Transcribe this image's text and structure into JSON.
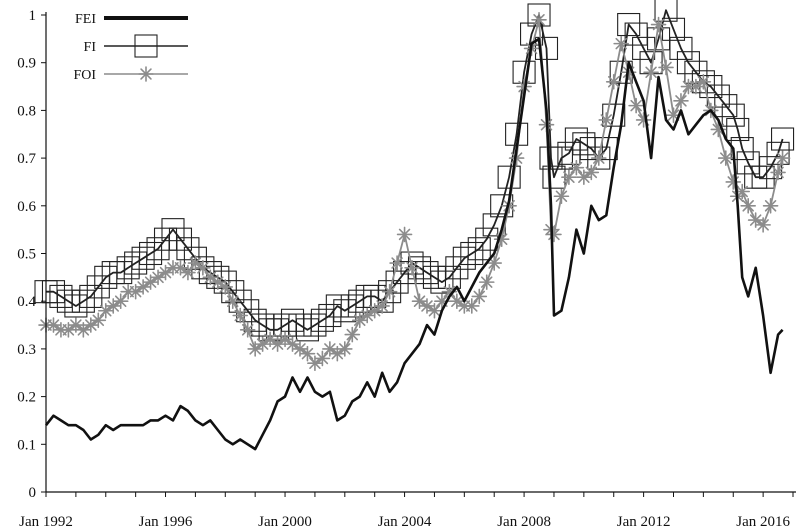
{
  "chart_data": {
    "type": "line",
    "title": "",
    "xlabel": "",
    "ylabel": "",
    "xlim": [
      1992.0,
      2017.1
    ],
    "ylim": [
      0,
      1.0
    ],
    "x_tick_labels": [
      {
        "label": "Jan 1992",
        "x": 1992
      },
      {
        "label": "Jan 1996",
        "x": 1996
      },
      {
        "label": "Jan 2000",
        "x": 2000
      },
      {
        "label": "Jan 2004",
        "x": 2004
      },
      {
        "label": "Jan 2008",
        "x": 2008
      },
      {
        "label": "Jan 2012",
        "x": 2012
      },
      {
        "label": "Jan 2016",
        "x": 2016
      }
    ],
    "y_ticks": [
      0,
      0.1,
      0.2,
      0.3,
      0.4,
      0.5,
      0.6,
      0.7,
      0.8,
      0.9,
      1
    ],
    "y_tick_labels": [
      "0",
      "0.1",
      "0.2",
      "0.3",
      "0.4",
      "0.5",
      "0.6",
      "0.7",
      "0.8",
      "0.9",
      "1"
    ],
    "grid": false,
    "legend": {
      "position": "top-left"
    },
    "series": [
      {
        "name": "FEI",
        "color": "#111111",
        "marker": "none",
        "x": [
          1992.0,
          1992.25,
          1992.5,
          1992.75,
          1993.0,
          1993.25,
          1993.5,
          1993.75,
          1994.0,
          1994.25,
          1994.5,
          1994.75,
          1995.0,
          1995.25,
          1995.5,
          1995.75,
          1996.0,
          1996.25,
          1996.5,
          1996.75,
          1997.0,
          1997.25,
          1997.5,
          1997.75,
          1998.0,
          1998.25,
          1998.5,
          1998.75,
          1999.0,
          1999.25,
          1999.5,
          1999.75,
          2000.0,
          2000.25,
          2000.5,
          2000.75,
          2001.0,
          2001.25,
          2001.5,
          2001.75,
          2002.0,
          2002.25,
          2002.5,
          2002.75,
          2003.0,
          2003.25,
          2003.5,
          2003.75,
          2004.0,
          2004.25,
          2004.5,
          2004.75,
          2005.0,
          2005.25,
          2005.5,
          2005.75,
          2006.0,
          2006.25,
          2006.5,
          2006.75,
          2007.0,
          2007.25,
          2007.5,
          2007.75,
          2008.0,
          2008.25,
          2008.5,
          2008.75,
          2008.9,
          2009.0,
          2009.25,
          2009.5,
          2009.75,
          2010.0,
          2010.25,
          2010.5,
          2010.75,
          2011.0,
          2011.25,
          2011.5,
          2011.75,
          2012.0,
          2012.25,
          2012.5,
          2012.75,
          2013.0,
          2013.25,
          2013.5,
          2013.75,
          2014.0,
          2014.25,
          2014.5,
          2014.75,
          2015.0,
          2015.15,
          2015.3,
          2015.5,
          2015.75,
          2016.0,
          2016.25,
          2016.5,
          2016.65
        ],
        "values": [
          0.14,
          0.16,
          0.15,
          0.14,
          0.14,
          0.13,
          0.11,
          0.12,
          0.14,
          0.13,
          0.14,
          0.14,
          0.14,
          0.14,
          0.15,
          0.15,
          0.16,
          0.15,
          0.18,
          0.17,
          0.15,
          0.14,
          0.15,
          0.13,
          0.11,
          0.1,
          0.11,
          0.1,
          0.09,
          0.12,
          0.15,
          0.19,
          0.2,
          0.24,
          0.21,
          0.24,
          0.21,
          0.2,
          0.21,
          0.15,
          0.16,
          0.19,
          0.2,
          0.23,
          0.2,
          0.25,
          0.21,
          0.23,
          0.27,
          0.29,
          0.31,
          0.35,
          0.33,
          0.38,
          0.41,
          0.43,
          0.4,
          0.43,
          0.46,
          0.48,
          0.5,
          0.55,
          0.61,
          0.72,
          0.83,
          0.94,
          0.95,
          0.8,
          0.6,
          0.37,
          0.38,
          0.45,
          0.55,
          0.5,
          0.6,
          0.57,
          0.58,
          0.68,
          0.77,
          0.9,
          0.86,
          0.82,
          0.7,
          0.87,
          0.78,
          0.76,
          0.8,
          0.75,
          0.77,
          0.79,
          0.8,
          0.78,
          0.74,
          0.72,
          0.6,
          0.45,
          0.41,
          0.47,
          0.37,
          0.25,
          0.33,
          0.34
        ]
      },
      {
        "name": "FI",
        "color": "#222222",
        "marker": "square",
        "x": [
          1992.0,
          1992.25,
          1992.5,
          1992.75,
          1993.0,
          1993.25,
          1993.5,
          1993.75,
          1994.0,
          1994.25,
          1994.5,
          1994.75,
          1995.0,
          1995.25,
          1995.5,
          1995.75,
          1996.0,
          1996.25,
          1996.5,
          1996.75,
          1997.0,
          1997.25,
          1997.5,
          1997.75,
          1998.0,
          1998.25,
          1998.5,
          1998.75,
          1999.0,
          1999.25,
          1999.5,
          1999.75,
          2000.0,
          2000.25,
          2000.5,
          2000.75,
          2001.0,
          2001.25,
          2001.5,
          2001.75,
          2002.0,
          2002.25,
          2002.5,
          2002.75,
          2003.0,
          2003.25,
          2003.5,
          2003.75,
          2004.0,
          2004.25,
          2004.5,
          2004.75,
          2005.0,
          2005.25,
          2005.5,
          2005.75,
          2006.0,
          2006.25,
          2006.5,
          2006.75,
          2007.0,
          2007.25,
          2007.5,
          2007.75,
          2008.0,
          2008.25,
          2008.5,
          2008.75,
          2008.9,
          2009.0,
          2009.25,
          2009.5,
          2009.75,
          2010.0,
          2010.25,
          2010.5,
          2010.75,
          2011.0,
          2011.25,
          2011.5,
          2011.75,
          2012.0,
          2012.25,
          2012.5,
          2012.75,
          2013.0,
          2013.25,
          2013.5,
          2013.75,
          2014.0,
          2014.25,
          2014.5,
          2014.75,
          2015.0,
          2015.15,
          2015.3,
          2015.5,
          2015.75,
          2016.0,
          2016.25,
          2016.5,
          2016.65
        ],
        "values": [
          0.42,
          0.42,
          0.41,
          0.4,
          0.39,
          0.4,
          0.41,
          0.43,
          0.45,
          0.46,
          0.46,
          0.47,
          0.48,
          0.49,
          0.5,
          0.51,
          0.53,
          0.55,
          0.53,
          0.51,
          0.49,
          0.47,
          0.46,
          0.45,
          0.44,
          0.42,
          0.4,
          0.38,
          0.36,
          0.35,
          0.34,
          0.34,
          0.35,
          0.36,
          0.35,
          0.34,
          0.35,
          0.36,
          0.37,
          0.39,
          0.38,
          0.39,
          0.4,
          0.41,
          0.41,
          0.4,
          0.42,
          0.44,
          0.46,
          0.48,
          0.47,
          0.46,
          0.45,
          0.44,
          0.45,
          0.47,
          0.49,
          0.5,
          0.51,
          0.53,
          0.56,
          0.6,
          0.66,
          0.75,
          0.88,
          0.96,
          1.0,
          0.93,
          0.7,
          0.66,
          0.7,
          0.71,
          0.74,
          0.73,
          0.72,
          0.7,
          0.72,
          0.79,
          0.88,
          0.98,
          0.96,
          0.93,
          0.9,
          0.95,
          1.01,
          0.97,
          0.93,
          0.9,
          0.88,
          0.86,
          0.85,
          0.83,
          0.81,
          0.79,
          0.76,
          0.72,
          0.69,
          0.66,
          0.66,
          0.68,
          0.71,
          0.74
        ]
      },
      {
        "name": "FOI",
        "color": "#8c8c8c",
        "marker": "asterisk",
        "x": [
          1992.0,
          1992.25,
          1992.5,
          1992.75,
          1993.0,
          1993.25,
          1993.5,
          1993.75,
          1994.0,
          1994.25,
          1994.5,
          1994.75,
          1995.0,
          1995.25,
          1995.5,
          1995.75,
          1996.0,
          1996.25,
          1996.5,
          1996.75,
          1997.0,
          1997.25,
          1997.5,
          1997.75,
          1998.0,
          1998.25,
          1998.5,
          1998.75,
          1999.0,
          1999.25,
          1999.5,
          1999.75,
          2000.0,
          2000.25,
          2000.5,
          2000.75,
          2001.0,
          2001.25,
          2001.5,
          2001.75,
          2002.0,
          2002.25,
          2002.5,
          2002.75,
          2003.0,
          2003.25,
          2003.5,
          2003.75,
          2004.0,
          2004.25,
          2004.5,
          2004.75,
          2005.0,
          2005.25,
          2005.5,
          2005.75,
          2006.0,
          2006.25,
          2006.5,
          2006.75,
          2007.0,
          2007.25,
          2007.5,
          2007.75,
          2008.0,
          2008.25,
          2008.5,
          2008.75,
          2008.9,
          2009.0,
          2009.25,
          2009.5,
          2009.75,
          2010.0,
          2010.25,
          2010.5,
          2010.75,
          2011.0,
          2011.25,
          2011.5,
          2011.75,
          2012.0,
          2012.25,
          2012.5,
          2012.75,
          2013.0,
          2013.25,
          2013.5,
          2013.75,
          2014.0,
          2014.25,
          2014.5,
          2014.75,
          2015.0,
          2015.15,
          2015.3,
          2015.5,
          2015.75,
          2016.0,
          2016.25,
          2016.5,
          2016.65
        ],
        "values": [
          0.35,
          0.35,
          0.34,
          0.34,
          0.35,
          0.34,
          0.35,
          0.36,
          0.38,
          0.39,
          0.4,
          0.42,
          0.42,
          0.43,
          0.44,
          0.45,
          0.46,
          0.47,
          0.47,
          0.46,
          0.48,
          0.47,
          0.45,
          0.44,
          0.43,
          0.4,
          0.37,
          0.34,
          0.3,
          0.31,
          0.32,
          0.31,
          0.32,
          0.31,
          0.3,
          0.29,
          0.27,
          0.28,
          0.3,
          0.29,
          0.3,
          0.33,
          0.36,
          0.37,
          0.38,
          0.39,
          0.42,
          0.48,
          0.54,
          0.47,
          0.4,
          0.39,
          0.38,
          0.4,
          0.42,
          0.4,
          0.39,
          0.39,
          0.41,
          0.44,
          0.48,
          0.53,
          0.6,
          0.7,
          0.85,
          0.93,
          0.99,
          0.77,
          0.55,
          0.54,
          0.62,
          0.66,
          0.68,
          0.66,
          0.67,
          0.7,
          0.78,
          0.86,
          0.94,
          0.88,
          0.81,
          0.78,
          0.88,
          0.98,
          0.89,
          0.79,
          0.82,
          0.85,
          0.85,
          0.86,
          0.8,
          0.76,
          0.7,
          0.65,
          0.62,
          0.63,
          0.6,
          0.57,
          0.56,
          0.6,
          0.67,
          0.7
        ]
      }
    ]
  }
}
